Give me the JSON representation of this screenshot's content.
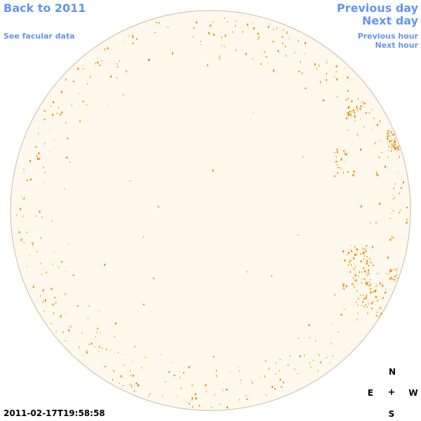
{
  "nav": {
    "back_label": "Back to 2011",
    "facular_label": "See facular data",
    "prev_day_label": "Previous day",
    "next_day_label": "Next day",
    "prev_hour_label": "Previous hour",
    "next_hour_label": "Next hour"
  },
  "timestamp": "2011-02-17T19:58:58",
  "compass": {
    "north": "N",
    "east": "E",
    "west": "W",
    "south": "S",
    "center": "+"
  },
  "colors": {
    "link": "#6495ed",
    "disk_fill": "#fff8ec",
    "disk_stroke": "#c8bca8",
    "facula": "#e88a00"
  },
  "icons": {
    "sun_disk": "solar-disk-icon",
    "compass_cross": "plus-glyph"
  }
}
